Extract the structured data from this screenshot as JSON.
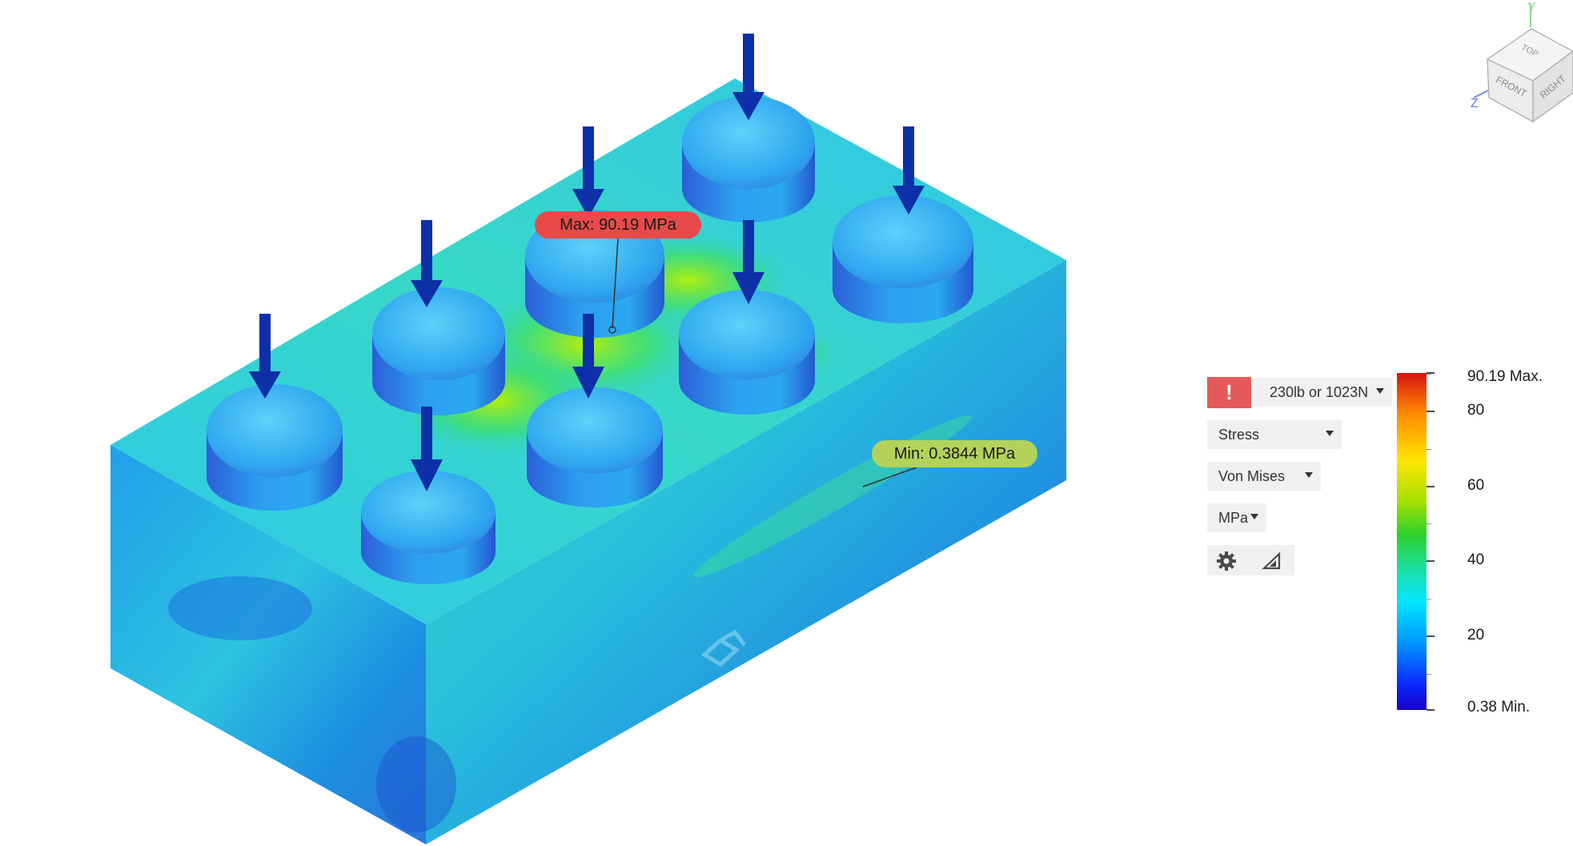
{
  "annotations": {
    "max_label": "Max: 90.19 MPa",
    "min_label": "Min: 0.3844 MPa"
  },
  "panel": {
    "warning_icon": "!",
    "load_case": "230lb or 1023N",
    "result_type": "Stress",
    "stress_type": "Von Mises",
    "units": "MPa",
    "tools": [
      "gear-icon",
      "triangle-probe-icon"
    ]
  },
  "legend": {
    "max": "90.19 Max.",
    "ticks": [
      "80",
      "60",
      "40",
      "20"
    ],
    "min": "0.38 Min.",
    "range": [
      0.38,
      90.19
    ]
  },
  "view_cube": {
    "faces": [
      "TOP",
      "FRONT",
      "RIGHT"
    ],
    "axes": [
      "Y",
      "Z"
    ]
  },
  "colors": {
    "warning": "#e45a5a",
    "max_badge": "#e84a4a",
    "min_badge": "#b4d25a",
    "load_arrow": "#0d2fa8"
  }
}
